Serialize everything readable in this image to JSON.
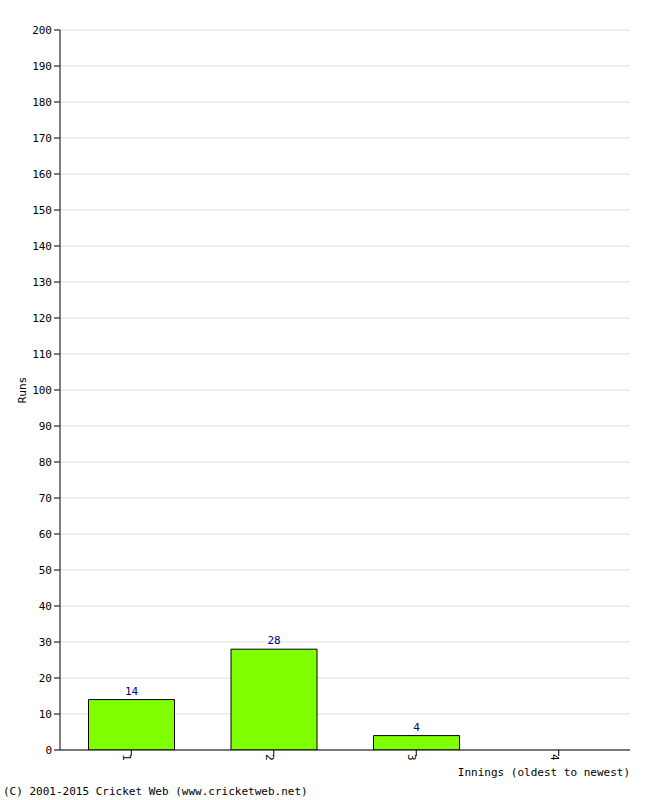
{
  "chart_data": {
    "type": "bar",
    "categories": [
      "1",
      "2",
      "3",
      "4"
    ],
    "values": [
      14,
      28,
      4,
      0
    ],
    "color": "#7fff00",
    "ylim": [
      0,
      200
    ],
    "yticks": [
      0,
      10,
      20,
      30,
      40,
      50,
      60,
      70,
      80,
      90,
      100,
      110,
      120,
      130,
      140,
      150,
      160,
      170,
      180,
      190,
      200
    ],
    "grid": true,
    "data_labels": true,
    "y_label": "Runs",
    "x_label": "Innings (oldest to newest)",
    "footer": "(C) 2001-2015 Cricket Web (www.cricketweb.net)"
  }
}
